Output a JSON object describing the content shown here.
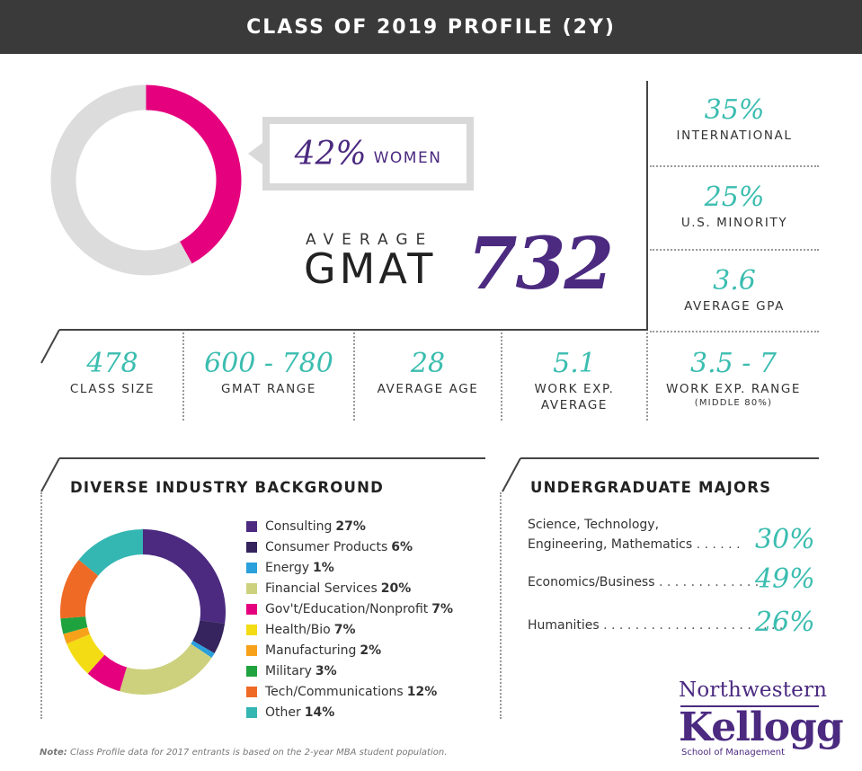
{
  "header": {
    "title": "CLASS OF 2019 PROFILE (2Y)"
  },
  "colors": {
    "purple": "#4b2a80",
    "teal": "#3bbdb0",
    "magenta": "#e5007e",
    "donut_gray": "#dcdcdc",
    "header_bg": "#3a3a3a"
  },
  "women": {
    "percent_label": "42%",
    "label": "WOMEN",
    "value": 42
  },
  "gmat": {
    "label_top": "AVERAGE",
    "label_word": "GMAT",
    "value": "732"
  },
  "right_stats": [
    {
      "value": "35%",
      "label": "INTERNATIONAL"
    },
    {
      "value": "25%",
      "label": "U.S. MINORITY"
    },
    {
      "value": "3.6",
      "label": "AVERAGE GPA"
    }
  ],
  "row_stats": [
    {
      "value": "478",
      "label": "CLASS SIZE"
    },
    {
      "value": "600 - 780",
      "label": "GMAT RANGE"
    },
    {
      "value": "28",
      "label": "AVERAGE AGE"
    },
    {
      "value": "5.1",
      "label": "WORK EXP.",
      "label2": "AVERAGE"
    },
    {
      "value": "3.5 - 7",
      "label": "WORK EXP. RANGE",
      "sub": "(MIDDLE 80%)"
    }
  ],
  "industry": {
    "title": "DIVERSE INDUSTRY BACKGROUND"
  },
  "majors": {
    "title": "UNDERGRADUATE MAJORS",
    "items": [
      {
        "line1": "Science, Technology,",
        "line2": "Engineering, Mathematics",
        "dots": " . . . . . .",
        "pct": "30%"
      },
      {
        "line1": "Economics/Business",
        "dots": " . . . . . . . . . . . . . .",
        "pct": "49%"
      },
      {
        "line1": "Humanities",
        "dots": " . . . . . . . . . . . . . . . . . . . . . . .",
        "pct": "26%"
      }
    ]
  },
  "logo": {
    "top": "Northwestern",
    "main": "Kellogg",
    "sub": "School of Management"
  },
  "footnote": {
    "bold": "Note:",
    "text": " Class Profile data for 2017 entrants is based on the 2-year MBA student population."
  },
  "chart_data": [
    {
      "type": "pie",
      "categories": [
        "Women",
        "Other"
      ],
      "values": [
        42,
        58
      ],
      "colors": [
        "#e5007e",
        "#dcdcdc"
      ]
    },
    {
      "type": "pie",
      "title": "DIVERSE INDUSTRY BACKGROUND",
      "legend": "right",
      "categories": [
        "Consulting",
        "Consumer Products",
        "Energy",
        "Financial Services",
        "Gov't/Education/Nonprofit",
        "Health/Bio",
        "Manufacturing",
        "Military",
        "Tech/Communications",
        "Other"
      ],
      "values": [
        27,
        6,
        1,
        20,
        7,
        7,
        2,
        3,
        12,
        14
      ],
      "value_labels": [
        "27%",
        "6%",
        "1%",
        "20%",
        "7%",
        "7%",
        "2%",
        "3%",
        "12%",
        "14%"
      ],
      "colors": [
        "#4b2a80",
        "#35245e",
        "#2aa0dc",
        "#cdd17d",
        "#e5007e",
        "#f3dc14",
        "#f7a11a",
        "#1ea33f",
        "#ef6a25",
        "#34b6b3"
      ]
    }
  ]
}
